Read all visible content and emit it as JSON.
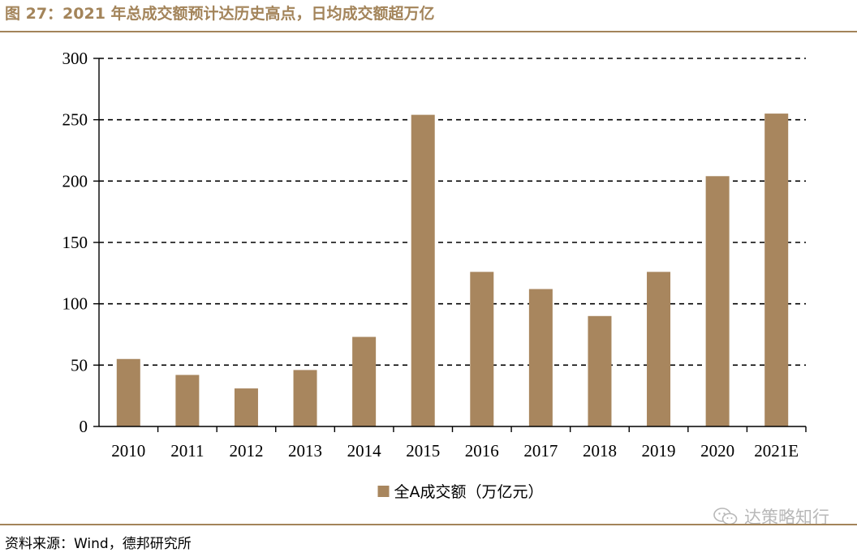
{
  "figure": {
    "title": "图 27：2021 年总成交额预计达历史高点，日均成交额超万亿",
    "source": "资料来源：Wind，德邦研究所",
    "watermark": "达策略知行",
    "watermark_icon": "wechat-icon"
  },
  "colors": {
    "accent": "#a3845a",
    "bar": "#a8865e",
    "axis": "#000000",
    "grid": "#000000"
  },
  "chart_data": {
    "type": "bar",
    "title": "",
    "xlabel": "",
    "ylabel": "",
    "categories": [
      "2010",
      "2011",
      "2012",
      "2013",
      "2014",
      "2015",
      "2016",
      "2017",
      "2018",
      "2019",
      "2020",
      "2021E"
    ],
    "series": [
      {
        "name": "全A成交额（万亿元）",
        "values": [
          55,
          42,
          31,
          46,
          73,
          254,
          126,
          112,
          90,
          126,
          204,
          255
        ]
      }
    ],
    "ylim": [
      0,
      300
    ],
    "yticks": [
      "0",
      "50",
      "100",
      "150",
      "200",
      "250",
      "300"
    ],
    "grid": "horizontal dashed",
    "legend_position": "bottom-center"
  }
}
